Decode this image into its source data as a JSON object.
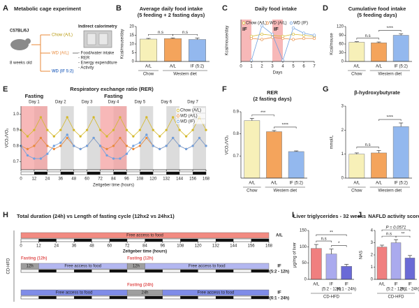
{
  "panel_a": {
    "label": "A",
    "title": "Metabolic cage experiment",
    "strain": "C57BL/6J",
    "age": "8 weeks old",
    "groups": [
      "Chow (A/L)",
      "WD (A/L)",
      "WD (IF 5:2)"
    ],
    "method": "Indirect calorimetry",
    "measures": [
      "- Food/water intake",
      "- RER",
      "- Energy expenditure",
      "- Activity"
    ]
  },
  "chart_data": [
    {
      "label": "B",
      "type": "bar",
      "title": "Average daily food intake",
      "subtitle": "(5 feeding + 2 fasting days)",
      "y_label": "Kcal/mouse/day",
      "categories": [
        "A/L",
        "A/L",
        "IF (5:2)"
      ],
      "groups": [
        "Chow",
        "Western diet",
        "Western diet"
      ],
      "values": [
        12.8,
        13.1,
        12.6
      ],
      "errors": [
        0.4,
        0.4,
        0.8
      ],
      "colors": [
        "#f7f0b8",
        "#f4a45c",
        "#93b8ee"
      ],
      "ylim": [
        0,
        20
      ],
      "yticks": [
        0,
        5,
        10,
        15,
        20
      ],
      "significance": [
        {
          "from": 0,
          "to": 1,
          "label": "n.s"
        },
        {
          "from": 1,
          "to": 2,
          "label": "n.s"
        }
      ]
    },
    {
      "label": "C",
      "type": "line",
      "title": "Daily food intake",
      "y_label": "Kcal/mouse/day",
      "x_label": "Days",
      "x": [
        1,
        2,
        3,
        4,
        5,
        6,
        7
      ],
      "xlim": [
        0,
        7
      ],
      "xticks": [
        0,
        1,
        2,
        3,
        4,
        5,
        6,
        7
      ],
      "ylim": [
        0,
        20
      ],
      "fasting_periods": [
        [
          0,
          1
        ],
        [
          3,
          4
        ]
      ],
      "fasting_label": "IF",
      "legend": "upper center",
      "series": [
        {
          "name": "Chow (A/L)",
          "color": "#d4b82a",
          "values": [
            12,
            13,
            12.5,
            12,
            13,
            12.5,
            12
          ]
        },
        {
          "name": "WD (A/L)",
          "color": "#e8893a",
          "values": [
            11,
            10.5,
            11.5,
            11,
            10.5,
            11,
            11
          ]
        },
        {
          "name": "WD (IF)",
          "color": "#6fa0e0",
          "values": [
            0.5,
            17,
            13,
            0.5,
            16,
            13.5,
            12.5
          ]
        }
      ]
    },
    {
      "label": "D",
      "type": "bar",
      "title": "Cumulative food intake",
      "subtitle": "(5 feeding days)",
      "y_label": "Kcal/mouse",
      "categories": [
        "A/L",
        "A/L",
        "IF (5:2)"
      ],
      "groups": [
        "Chow",
        "Western diet",
        "Western diet"
      ],
      "values": [
        66,
        64,
        90
      ],
      "errors": [
        2,
        3,
        5
      ],
      "colors": [
        "#f7f0b8",
        "#f4a45c",
        "#93b8ee"
      ],
      "ylim": [
        0,
        120
      ],
      "yticks": [
        0,
        30,
        60,
        90,
        120
      ],
      "significance": [
        {
          "from": 0,
          "to": 1,
          "label": "n.s"
        },
        {
          "from": 1,
          "to": 2,
          "label": "****"
        }
      ]
    },
    {
      "label": "E",
      "type": "line",
      "title": "Respiratory exchange ratio (RER)",
      "y_label": "VCO₂/VO₂",
      "x_label": "Zeitgeber time (hours)",
      "x": [
        0,
        6,
        12,
        18,
        24,
        30,
        36,
        42,
        48,
        54,
        60,
        66,
        72,
        78,
        84,
        90,
        96,
        102,
        108,
        114,
        120,
        126,
        132,
        138,
        144,
        150,
        156,
        162,
        168
      ],
      "xlim": [
        0,
        168
      ],
      "xticks": [
        0,
        12,
        24,
        36,
        48,
        60,
        72,
        84,
        96,
        108,
        120,
        132,
        144,
        156,
        168
      ],
      "ylim": [
        0.65,
        1.05
      ],
      "yticks": [
        0.7,
        0.8,
        0.9,
        {
          "value": 1,
          "label": "1.0"
        }
      ],
      "fasting_periods": [
        [
          0,
          24
        ],
        [
          72,
          96
        ]
      ],
      "fasting_label": "Fasting",
      "dark_periods": [
        [
          12,
          24
        ],
        [
          36,
          48
        ],
        [
          60,
          72
        ],
        [
          84,
          96
        ],
        [
          108,
          120
        ],
        [
          132,
          144
        ],
        [
          156,
          168
        ]
      ],
      "day_labels": [
        "Day 1",
        "Day 2",
        "Day 3",
        "Day 4",
        "Day 5",
        "Day 6",
        "Day 7"
      ],
      "legend": "upper right",
      "series": [
        {
          "name": "Chow (A/L)",
          "color": "#d4b82a",
          "values": [
            0.9,
            0.86,
            0.9,
            0.98,
            0.9,
            0.86,
            0.9,
            0.98,
            0.9,
            0.86,
            0.9,
            0.98,
            0.9,
            0.86,
            0.9,
            0.98,
            0.9,
            0.86,
            0.9,
            0.98,
            0.9,
            0.86,
            0.9,
            0.98,
            0.9,
            0.86,
            0.9,
            0.98,
            0.9
          ]
        },
        {
          "name": "WD (A/L)",
          "color": "#e8893a",
          "values": [
            0.8,
            0.78,
            0.8,
            0.85,
            0.8,
            0.78,
            0.8,
            0.85,
            0.8,
            0.78,
            0.8,
            0.85,
            0.8,
            0.78,
            0.8,
            0.85,
            0.8,
            0.78,
            0.8,
            0.85,
            0.8,
            0.78,
            0.8,
            0.85,
            0.8,
            0.78,
            0.8,
            0.85,
            0.8
          ]
        },
        {
          "name": "WD (IF)",
          "color": "#6fa0e0",
          "values": [
            0.8,
            0.74,
            0.72,
            0.72,
            0.75,
            0.8,
            0.82,
            0.87,
            0.8,
            0.78,
            0.8,
            0.85,
            0.8,
            0.74,
            0.72,
            0.72,
            0.75,
            0.8,
            0.82,
            0.87,
            0.8,
            0.78,
            0.8,
            0.85,
            0.8,
            0.78,
            0.8,
            0.85,
            0.8
          ]
        }
      ]
    },
    {
      "label": "F",
      "type": "bar",
      "title": "RER",
      "subtitle": "(2 fasting days)",
      "y_label": "VCO₂/VO₂",
      "categories": [
        "A/L",
        "A/L",
        "IF (5:2)"
      ],
      "groups": [
        "Chow",
        "Western diet",
        "Western diet"
      ],
      "values": [
        0.86,
        0.81,
        0.72
      ],
      "errors": [
        0.01,
        0.005,
        0.003
      ],
      "colors": [
        "#f7f0b8",
        "#f4a45c",
        "#93b8ee"
      ],
      "ylim": [
        0.6,
        0.9
      ],
      "yticks": [
        0.7,
        0.8,
        0.9
      ],
      "significance": [
        {
          "from": 0,
          "to": 1,
          "label": "***"
        },
        {
          "from": 1,
          "to": 2,
          "label": "****"
        }
      ]
    },
    {
      "label": "G",
      "type": "bar",
      "title": "β-hydroxybutyrate",
      "y_label": "mmol/L",
      "categories": [
        "A/L",
        "A/L",
        "IF (5:2)"
      ],
      "groups": [
        "Chow",
        "Western diet",
        "Western diet"
      ],
      "values": [
        1.0,
        1.05,
        2.15
      ],
      "errors": [
        0.05,
        0.1,
        0.15
      ],
      "colors": [
        "#f7f0b8",
        "#f4a45c",
        "#93b8ee"
      ],
      "ylim": [
        0,
        3
      ],
      "yticks": [
        0,
        1,
        2,
        3
      ],
      "significance": [
        {
          "from": 0,
          "to": 1,
          "label": "n.s"
        },
        {
          "from": 1,
          "to": 2,
          "label": "****"
        }
      ]
    },
    {
      "label": "I",
      "type": "bar",
      "title": "Liver triglycerides - 32 weeks",
      "y_label": "µg/mg of liver",
      "categories": [
        "A/L",
        "IF",
        "IF"
      ],
      "category_notes": [
        null,
        "(5:2 - 12h)",
        "(6:1 - 24h)"
      ],
      "groups": [
        "CD-HFD",
        "CD-HFD",
        "CD-HFD"
      ],
      "values": [
        95,
        78,
        40
      ],
      "errors": [
        12,
        15,
        6
      ],
      "colors": [
        "#f07f7f",
        "#aaaaee",
        "#6a6ad6"
      ],
      "ylim": [
        0,
        150
      ],
      "yticks": [
        0,
        50,
        100,
        150
      ],
      "significance": [
        {
          "from": 0,
          "to": 1,
          "label": "n.s"
        },
        {
          "from": 1,
          "to": 2,
          "label": "*"
        },
        {
          "from": 0,
          "to": 2,
          "label": "**"
        }
      ]
    },
    {
      "label": "J",
      "type": "bar",
      "title": "NAFLD activity score",
      "y_label": "NAS",
      "categories": [
        "A/L",
        "IF",
        "IF"
      ],
      "category_notes": [
        null,
        "(5:2 - 12h)",
        "(6:1 - 24h)"
      ],
      "groups": [
        "CD-HFD",
        "CD-HFD",
        "CD-HFD"
      ],
      "values": [
        2.65,
        3.0,
        1.75
      ],
      "errors": [
        0.15,
        0.25,
        0.2
      ],
      "colors": [
        "#f07f7f",
        "#aaaaee",
        "#6a6ad6"
      ],
      "ylim": [
        0,
        4
      ],
      "yticks": [
        0,
        1,
        2,
        3,
        4
      ],
      "significance": [
        {
          "from": 0,
          "to": 1,
          "label": "n.s"
        },
        {
          "from": 1,
          "to": 2,
          "label": "**"
        },
        {
          "from": 0,
          "to": 2,
          "label": "P = 0.0571"
        }
      ]
    }
  ],
  "panel_h": {
    "label": "H",
    "title": "Total duration (24h) vs Length of fasting cycle (12hx2 vs 24hx1)",
    "group": "CD-HFD",
    "axis_label": "Zeitgeber time (hours)",
    "xlim": [
      0,
      168
    ],
    "ticks": [
      0,
      12,
      24,
      36,
      48,
      60,
      72,
      84,
      96,
      108,
      120,
      132,
      144,
      156,
      168
    ],
    "dark_periods": [
      [
        12,
        24
      ],
      [
        36,
        48
      ],
      [
        60,
        72
      ],
      [
        84,
        96
      ],
      [
        108,
        120
      ],
      [
        132,
        144
      ],
      [
        156,
        168
      ]
    ],
    "rows": [
      {
        "name": "A/L",
        "note": null,
        "segments": [
          {
            "start": 0,
            "end": 168,
            "text": "Free access to food",
            "color": "#f28b82"
          }
        ]
      },
      {
        "name": "IF",
        "note": "(5:2 - 12h)",
        "segments": [
          {
            "start": 0,
            "end": 12,
            "text": "12h",
            "label": "Fasting (12h)",
            "color": "#9e9e9e"
          },
          {
            "start": 12,
            "end": 72,
            "text": "Free access to food",
            "color": "#b3b7f0"
          },
          {
            "start": 72,
            "end": 84,
            "text": "12h",
            "label": "Fasting (12h)",
            "color": "#9e9e9e"
          },
          {
            "start": 84,
            "end": 168,
            "text": "Free access to food",
            "color": "#b3b7f0"
          }
        ]
      },
      {
        "name": "IF",
        "note": "(6:1 - 24h)",
        "segments": [
          {
            "start": 0,
            "end": 72,
            "text": "Free access to food",
            "color": "#7f8ce8"
          },
          {
            "start": 72,
            "end": 96,
            "text": "24h",
            "label": "Fasting (24h)",
            "color": "#9e9e9e"
          },
          {
            "start": 96,
            "end": 168,
            "text": "Free access to food",
            "color": "#7f8ce8"
          }
        ]
      }
    ]
  }
}
